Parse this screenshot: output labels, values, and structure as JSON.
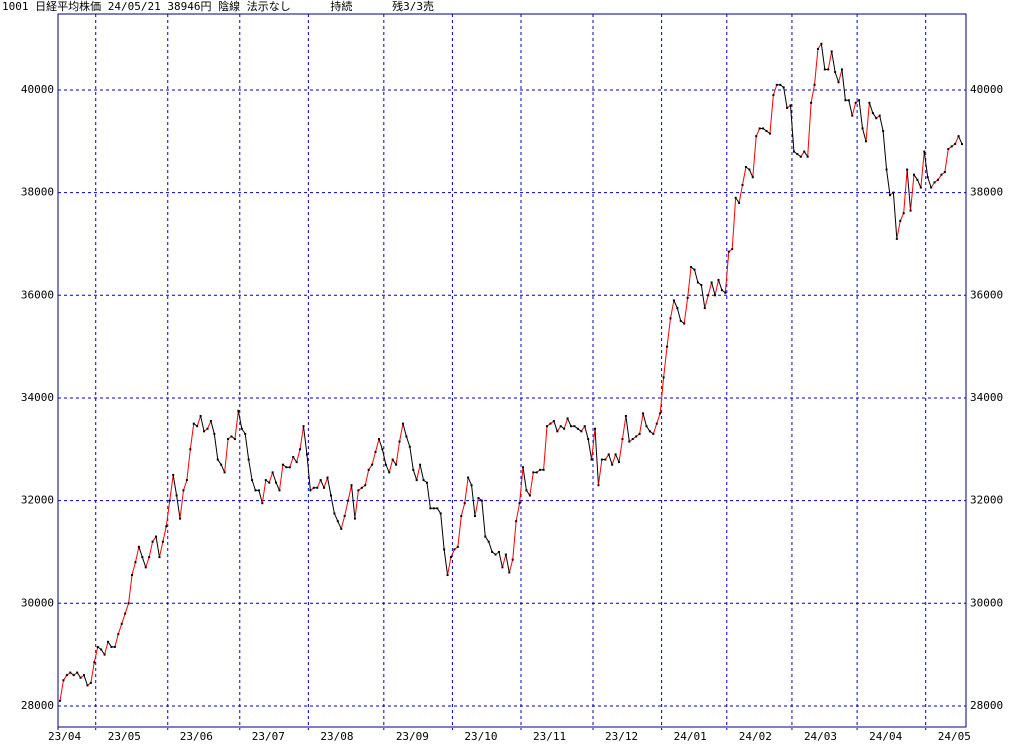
{
  "chart_data": {
    "type": "line",
    "title": "1001 日経平均株価 24/05/21 38946円 陰線 法示なし      持続      残3/3売",
    "up_color": "#ff0000",
    "down_color": "#000000",
    "point_color": "#000000",
    "grid_color": "#0000c0",
    "grid": true,
    "values": [
      28100,
      28500,
      28600,
      28650,
      28600,
      28650,
      28550,
      28600,
      28400,
      28450,
      28850,
      29150,
      29100,
      29000,
      29250,
      29150,
      29150,
      29400,
      29600,
      29800,
      30000,
      30550,
      30800,
      31100,
      30900,
      30700,
      30900,
      31200,
      31300,
      30900,
      31200,
      31500,
      32000,
      32500,
      32100,
      31650,
      32200,
      32400,
      33000,
      33500,
      33450,
      33650,
      33350,
      33400,
      33550,
      33300,
      32800,
      32700,
      32550,
      33200,
      33250,
      33200,
      33750,
      33400,
      33300,
      32800,
      32400,
      32200,
      32200,
      31950,
      32400,
      32350,
      32550,
      32350,
      32200,
      32700,
      32650,
      32650,
      32850,
      32750,
      33000,
      33450,
      32900,
      32200,
      32250,
      32250,
      32400,
      32250,
      32450,
      32100,
      31750,
      31600,
      31450,
      31700,
      32000,
      32300,
      31650,
      32200,
      32250,
      32300,
      32600,
      32700,
      32950,
      33200,
      33000,
      32700,
      32550,
      32800,
      32700,
      33150,
      33500,
      33250,
      33050,
      32600,
      32400,
      32700,
      32400,
      32350,
      31850,
      31850,
      31850,
      31750,
      31050,
      30550,
      30900,
      31050,
      31100,
      31700,
      31950,
      32450,
      32300,
      31700,
      32050,
      32000,
      31300,
      31200,
      31000,
      30950,
      31000,
      30700,
      30950,
      30600,
      30850,
      31600,
      31950,
      32650,
      32200,
      32100,
      32550,
      32550,
      32600,
      32600,
      33450,
      33500,
      33550,
      33350,
      33450,
      33400,
      33600,
      33450,
      33450,
      33400,
      33350,
      33450,
      33200,
      32800,
      33400,
      32300,
      32800,
      32800,
      32900,
      32700,
      32900,
      32750,
      33200,
      33650,
      33150,
      33200,
      33250,
      33300,
      33700,
      33450,
      33350,
      33300,
      33500,
      33700,
      34400,
      35000,
      35550,
      35900,
      35750,
      35500,
      35450,
      35950,
      36550,
      36500,
      36250,
      36200,
      35750,
      36000,
      36250,
      36000,
      36300,
      36100,
      36050,
      36850,
      36900,
      37900,
      37800,
      38150,
      38500,
      38450,
      38300,
      39100,
      39250,
      39250,
      39200,
      39150,
      39900,
      40100,
      40100,
      40050,
      39650,
      39700,
      38800,
      38750,
      38700,
      38800,
      38700,
      39750,
      40100,
      40800,
      40900,
      40400,
      40400,
      40750,
      40350,
      40150,
      40400,
      39800,
      39800,
      39500,
      39750,
      39800,
      39250,
      39000,
      39750,
      39550,
      39450,
      39500,
      39200,
      38450,
      37950,
      38000,
      37100,
      37450,
      37600,
      38450,
      37650,
      38350,
      38250,
      38100,
      38800,
      38300,
      38100,
      38200,
      38250,
      38350,
      38400,
      38850,
      38900,
      38950,
      39100,
      38946
    ],
    "xlim": [
      0,
      263
    ],
    "xticks": [
      {
        "value": 0,
        "label": "23/04"
      },
      {
        "value": 11,
        "label": "23/05"
      },
      {
        "value": 32,
        "label": "23/06"
      },
      {
        "value": 53,
        "label": "23/07"
      },
      {
        "value": 73,
        "label": "23/08"
      },
      {
        "value": 95,
        "label": "23/09"
      },
      {
        "value": 115,
        "label": "23/10"
      },
      {
        "value": 135,
        "label": "23/11"
      },
      {
        "value": 156,
        "label": "23/12"
      },
      {
        "value": 176,
        "label": "24/01"
      },
      {
        "value": 195,
        "label": "24/02"
      },
      {
        "value": 214,
        "label": "24/03"
      },
      {
        "value": 233,
        "label": "24/04"
      },
      {
        "value": 253,
        "label": "24/05"
      }
    ],
    "ylim": [
      27590,
      41480
    ],
    "yticks": [
      28000,
      30000,
      32000,
      34000,
      36000,
      38000,
      40000
    ]
  }
}
